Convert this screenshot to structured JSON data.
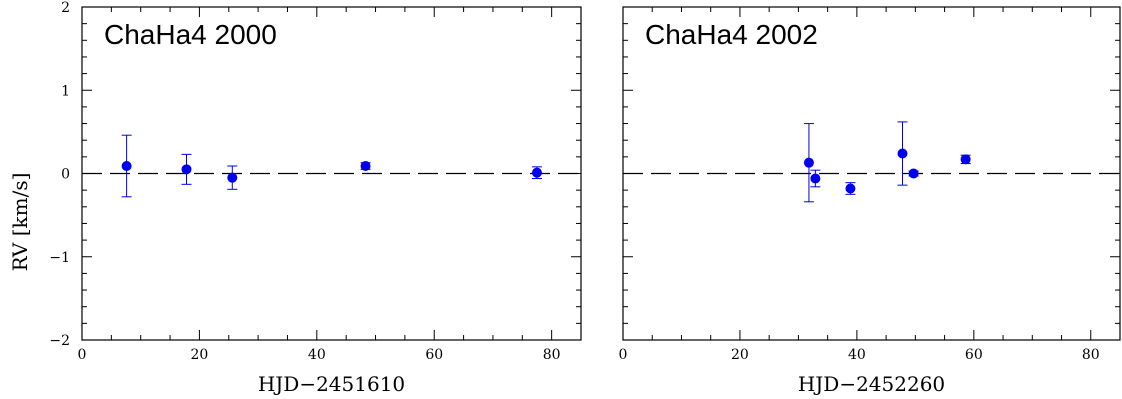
{
  "figure": {
    "ylabel": "RV [km/s]"
  },
  "colors": {
    "points": "#0000ee",
    "zero_line": "#000000",
    "frame": "#000000"
  },
  "chart_data": [
    {
      "type": "scatter",
      "title": "ChaHa4 2000",
      "xlabel": "HJD−2451610",
      "ylabel": "RV [km/s]",
      "xlim": [
        0,
        85
      ],
      "ylim": [
        -2,
        2
      ],
      "xticks": [
        0,
        20,
        40,
        60,
        80
      ],
      "yticks": [
        -2,
        -1,
        0,
        1,
        2
      ],
      "ytick_labels": [
        "−2",
        "−1",
        "0",
        "1",
        "2"
      ],
      "reference_line": 0,
      "grid": false,
      "points": [
        {
          "x": 7.6,
          "y": 0.09,
          "err": 0.37
        },
        {
          "x": 17.8,
          "y": 0.05,
          "err": 0.18
        },
        {
          "x": 25.6,
          "y": -0.05,
          "err": 0.14
        },
        {
          "x": 48.3,
          "y": 0.09,
          "err": 0.04
        },
        {
          "x": 77.5,
          "y": 0.01,
          "err": 0.07
        }
      ]
    },
    {
      "type": "scatter",
      "title": "ChaHa4 2002",
      "xlabel": "HJD−2452260",
      "ylabel": "",
      "xlim": [
        0,
        85
      ],
      "ylim": [
        -2,
        2
      ],
      "xticks": [
        0,
        20,
        40,
        60,
        80
      ],
      "yticks": [
        -2,
        -1,
        0,
        1,
        2
      ],
      "ytick_labels": [],
      "reference_line": 0,
      "grid": false,
      "points": [
        {
          "x": 31.8,
          "y": 0.13,
          "err": 0.47
        },
        {
          "x": 32.9,
          "y": -0.06,
          "err": 0.1
        },
        {
          "x": 38.9,
          "y": -0.18,
          "err": 0.07
        },
        {
          "x": 47.8,
          "y": 0.24,
          "err": 0.38
        },
        {
          "x": 49.7,
          "y": 0.0,
          "err": 0.03
        },
        {
          "x": 58.6,
          "y": 0.17,
          "err": 0.05
        }
      ]
    }
  ]
}
